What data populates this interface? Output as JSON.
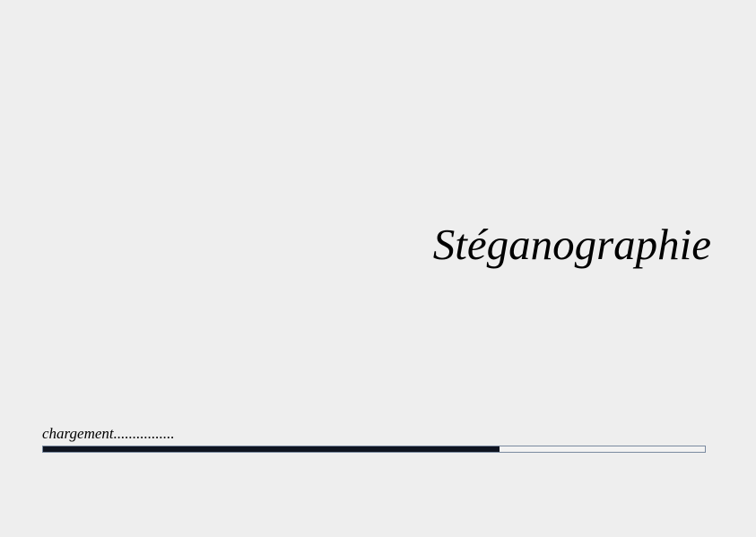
{
  "splash": {
    "title": "Stéganographie",
    "loading_text": "chargement................",
    "progress": 0.69
  },
  "colors": {
    "background": "#eeeeee",
    "progress_fill": "#0f1420",
    "progress_border": "#7a8aa0"
  }
}
